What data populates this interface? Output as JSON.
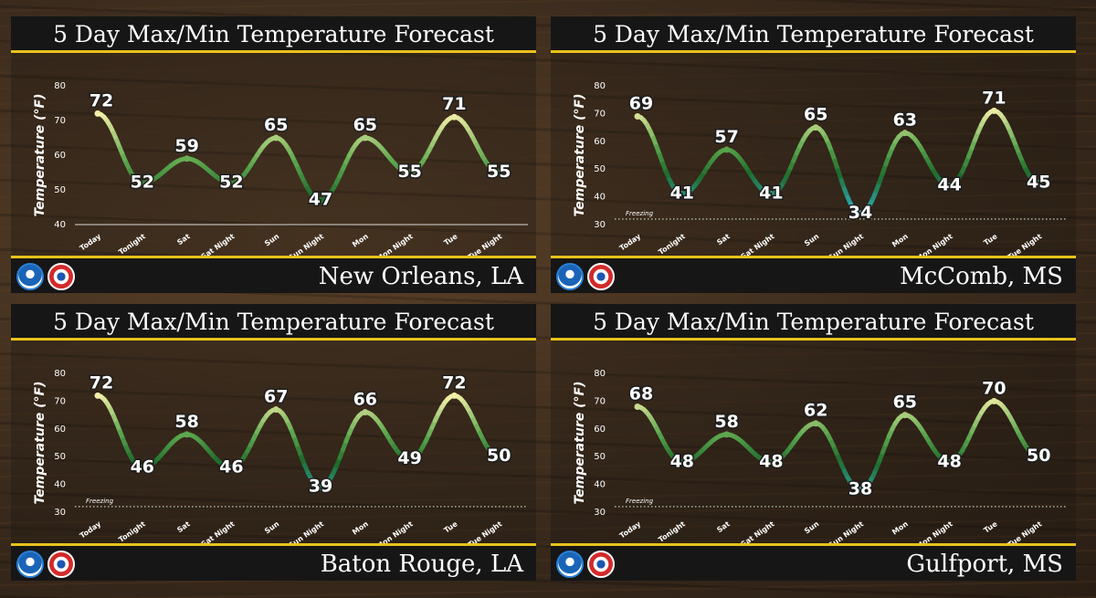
{
  "title": "5 Day Max/Min Temperature Forecast",
  "colors": {
    "accent": "#e8c21a",
    "bar": "#161616",
    "warm": "#f4f0a8",
    "cold": "#2fb3c6",
    "mid": "#1f6b2c"
  },
  "chart_data": [
    {
      "type": "line",
      "location": "New Orleans, LA",
      "title": "5 Day Max/Min Temperature Forecast",
      "ylabel": "Temperature (°F)",
      "ylim": [
        40,
        80
      ],
      "yticks": [
        "40",
        "50",
        "60",
        "70",
        "80"
      ],
      "categories": [
        "Today",
        "Tonight",
        "Sat",
        "Sat Night",
        "Sun",
        "Sun Night",
        "Mon",
        "Mon Night",
        "Tue",
        "Tue Night"
      ],
      "values": [
        72,
        52,
        59,
        52,
        65,
        47,
        65,
        55,
        71,
        55
      ],
      "labels": [
        "72",
        "52",
        "59",
        "52",
        "65",
        "47",
        "65",
        "55",
        "71",
        "55"
      ],
      "freezing": null,
      "grid": false
    },
    {
      "type": "line",
      "location": "McComb, MS",
      "title": "5 Day Max/Min Temperature Forecast",
      "ylabel": "Temperature (°F)",
      "ylim": [
        30,
        80
      ],
      "yticks": [
        "30",
        "40",
        "50",
        "60",
        "70",
        "80"
      ],
      "categories": [
        "Today",
        "Tonight",
        "Sat",
        "Sat Night",
        "Sun",
        "Sun Night",
        "Mon",
        "Mon Night",
        "Tue",
        "Tue Night"
      ],
      "values": [
        69,
        41,
        57,
        41,
        65,
        34,
        63,
        44,
        71,
        45
      ],
      "labels": [
        "69",
        "41",
        "57",
        "41",
        "65",
        "34",
        "63",
        "44",
        "71",
        "45"
      ],
      "freezing": {
        "value": 32,
        "label": "Freezing"
      },
      "grid": false
    },
    {
      "type": "line",
      "location": "Baton Rouge, LA",
      "title": "5 Day Max/Min Temperature Forecast",
      "ylabel": "Temperature (°F)",
      "ylim": [
        30,
        80
      ],
      "yticks": [
        "30",
        "40",
        "50",
        "60",
        "70",
        "80"
      ],
      "categories": [
        "Today",
        "Tonight",
        "Sat",
        "Sat Night",
        "Sun",
        "Sun Night",
        "Mon",
        "Mon Night",
        "Tue",
        "Tue Night"
      ],
      "values": [
        72,
        46,
        58,
        46,
        67,
        39,
        66,
        49,
        72,
        50
      ],
      "labels": [
        "72",
        "46",
        "58",
        "46",
        "67",
        "39",
        "66",
        "49",
        "72",
        "50"
      ],
      "freezing": {
        "value": 32,
        "label": "Freezing"
      },
      "grid": false
    },
    {
      "type": "line",
      "location": "Gulfport, MS",
      "title": "5 Day Max/Min Temperature Forecast",
      "ylabel": "Temperature (°F)",
      "ylim": [
        30,
        80
      ],
      "yticks": [
        "30",
        "40",
        "50",
        "60",
        "70",
        "80"
      ],
      "categories": [
        "Today",
        "Tonight",
        "Sat",
        "Sat Night",
        "Sun",
        "Sun Night",
        "Mon",
        "Mon Night",
        "Tue",
        "Tue Night"
      ],
      "values": [
        68,
        48,
        58,
        48,
        62,
        38,
        65,
        48,
        70,
        50
      ],
      "labels": [
        "68",
        "48",
        "58",
        "48",
        "62",
        "38",
        "65",
        "48",
        "70",
        "50"
      ],
      "freezing": {
        "value": 32,
        "label": "Freezing"
      },
      "grid": false
    }
  ]
}
